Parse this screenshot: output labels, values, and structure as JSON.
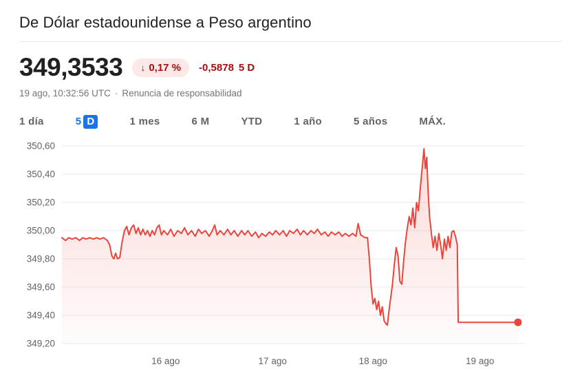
{
  "header": {
    "title": "De Dólar estadounidense a Peso argentino"
  },
  "quote": {
    "price": "349,3533",
    "change_arrow": "↓",
    "change_pct": "0,17 %",
    "change_value": "-0,5878",
    "change_period": "5 D",
    "timestamp": "19 ago, 10:32:56 UTC",
    "separator": "·",
    "disclaimer": "Renuncia de responsabilidad"
  },
  "tabs": [
    {
      "label": "1 día",
      "selected": false
    },
    {
      "label": "5 D",
      "selected": true,
      "highlight_part": "D"
    },
    {
      "label": "1 mes",
      "selected": false
    },
    {
      "label": "6 M",
      "selected": false
    },
    {
      "label": "YTD",
      "selected": false
    },
    {
      "label": "1 año",
      "selected": false
    },
    {
      "label": "5 años",
      "selected": false
    },
    {
      "label": "MÁX.",
      "selected": false
    }
  ],
  "colors": {
    "line": "#e8453c",
    "fill_top": "rgba(232,69,60,0.20)",
    "fill_bottom": "rgba(232,69,60,0.02)",
    "badge_bg": "#fce8e6",
    "badge_text": "#a50e0e",
    "accent_blue": "#1a73e8",
    "grid": "#e8eaed",
    "axis_text": "#5f6368"
  },
  "chart_data": {
    "type": "line",
    "title": "De Dólar estadounidense a Peso argentino",
    "xlabel": "",
    "ylabel": "",
    "ylim": [
      349.2,
      350.6
    ],
    "grid": true,
    "end_marker": true,
    "y_ticks": [
      {
        "value": 350.6,
        "label": "350,60"
      },
      {
        "value": 350.4,
        "label": "350,40"
      },
      {
        "value": 350.2,
        "label": "350,20"
      },
      {
        "value": 350.0,
        "label": "350,00"
      },
      {
        "value": 349.8,
        "label": "349,80"
      },
      {
        "value": 349.6,
        "label": "349,60"
      },
      {
        "value": 349.4,
        "label": "349,40"
      },
      {
        "value": 349.2,
        "label": "349,20"
      }
    ],
    "x_ticks": [
      {
        "t": 0.224,
        "label": "16 ago"
      },
      {
        "t": 0.455,
        "label": "17 ago"
      },
      {
        "t": 0.672,
        "label": "18 ago"
      },
      {
        "t": 0.903,
        "label": "19 ago"
      }
    ],
    "points": [
      [
        0.0,
        349.95
      ],
      [
        0.008,
        349.93
      ],
      [
        0.015,
        349.95
      ],
      [
        0.022,
        349.94
      ],
      [
        0.03,
        349.95
      ],
      [
        0.038,
        349.93
      ],
      [
        0.045,
        349.95
      ],
      [
        0.052,
        349.94
      ],
      [
        0.06,
        349.95
      ],
      [
        0.068,
        349.94
      ],
      [
        0.075,
        349.95
      ],
      [
        0.082,
        349.94
      ],
      [
        0.09,
        349.95
      ],
      [
        0.098,
        349.93
      ],
      [
        0.103,
        349.9
      ],
      [
        0.108,
        349.82
      ],
      [
        0.112,
        349.8
      ],
      [
        0.116,
        349.84
      ],
      [
        0.12,
        349.8
      ],
      [
        0.125,
        349.81
      ],
      [
        0.13,
        349.92
      ],
      [
        0.135,
        350.0
      ],
      [
        0.14,
        350.03
      ],
      [
        0.145,
        349.97
      ],
      [
        0.15,
        350.02
      ],
      [
        0.155,
        350.04
      ],
      [
        0.16,
        349.98
      ],
      [
        0.165,
        350.02
      ],
      [
        0.17,
        349.97
      ],
      [
        0.175,
        350.01
      ],
      [
        0.18,
        349.97
      ],
      [
        0.185,
        350.0
      ],
      [
        0.19,
        349.96
      ],
      [
        0.195,
        350.0
      ],
      [
        0.2,
        349.97
      ],
      [
        0.205,
        350.02
      ],
      [
        0.21,
        350.04
      ],
      [
        0.215,
        349.97
      ],
      [
        0.22,
        350.0
      ],
      [
        0.228,
        349.97
      ],
      [
        0.235,
        350.01
      ],
      [
        0.242,
        349.96
      ],
      [
        0.25,
        350.0
      ],
      [
        0.258,
        349.98
      ],
      [
        0.265,
        350.02
      ],
      [
        0.272,
        349.97
      ],
      [
        0.28,
        350.0
      ],
      [
        0.288,
        349.96
      ],
      [
        0.295,
        350.01
      ],
      [
        0.302,
        349.98
      ],
      [
        0.31,
        350.0
      ],
      [
        0.318,
        349.96
      ],
      [
        0.325,
        350.0
      ],
      [
        0.33,
        350.04
      ],
      [
        0.335,
        349.97
      ],
      [
        0.342,
        350.0
      ],
      [
        0.35,
        349.97
      ],
      [
        0.358,
        350.01
      ],
      [
        0.365,
        349.97
      ],
      [
        0.372,
        350.0
      ],
      [
        0.38,
        349.96
      ],
      [
        0.388,
        350.0
      ],
      [
        0.395,
        349.97
      ],
      [
        0.402,
        350.0
      ],
      [
        0.41,
        349.96
      ],
      [
        0.418,
        349.99
      ],
      [
        0.425,
        349.95
      ],
      [
        0.432,
        349.98
      ],
      [
        0.44,
        349.96
      ],
      [
        0.448,
        349.99
      ],
      [
        0.455,
        349.97
      ],
      [
        0.462,
        350.0
      ],
      [
        0.47,
        349.97
      ],
      [
        0.478,
        350.0
      ],
      [
        0.485,
        349.96
      ],
      [
        0.492,
        350.0
      ],
      [
        0.5,
        349.98
      ],
      [
        0.508,
        350.01
      ],
      [
        0.515,
        349.97
      ],
      [
        0.522,
        350.0
      ],
      [
        0.53,
        349.97
      ],
      [
        0.538,
        350.0
      ],
      [
        0.545,
        349.98
      ],
      [
        0.552,
        350.01
      ],
      [
        0.56,
        349.97
      ],
      [
        0.568,
        349.99
      ],
      [
        0.575,
        349.96
      ],
      [
        0.582,
        349.99
      ],
      [
        0.59,
        349.97
      ],
      [
        0.598,
        349.99
      ],
      [
        0.605,
        349.96
      ],
      [
        0.612,
        349.98
      ],
      [
        0.62,
        349.96
      ],
      [
        0.628,
        349.98
      ],
      [
        0.635,
        349.96
      ],
      [
        0.64,
        350.05
      ],
      [
        0.645,
        349.97
      ],
      [
        0.65,
        349.96
      ],
      [
        0.655,
        349.95
      ],
      [
        0.66,
        349.95
      ],
      [
        0.664,
        349.8
      ],
      [
        0.668,
        349.6
      ],
      [
        0.672,
        349.48
      ],
      [
        0.676,
        349.52
      ],
      [
        0.68,
        349.44
      ],
      [
        0.684,
        349.5
      ],
      [
        0.688,
        349.4
      ],
      [
        0.692,
        349.46
      ],
      [
        0.696,
        349.36
      ],
      [
        0.7,
        349.34
      ],
      [
        0.703,
        349.33
      ],
      [
        0.706,
        349.42
      ],
      [
        0.71,
        349.52
      ],
      [
        0.714,
        349.62
      ],
      [
        0.718,
        349.76
      ],
      [
        0.722,
        349.88
      ],
      [
        0.726,
        349.82
      ],
      [
        0.73,
        349.64
      ],
      [
        0.734,
        349.62
      ],
      [
        0.738,
        349.78
      ],
      [
        0.742,
        349.92
      ],
      [
        0.746,
        350.02
      ],
      [
        0.75,
        350.1
      ],
      [
        0.754,
        350.04
      ],
      [
        0.758,
        350.16
      ],
      [
        0.762,
        350.02
      ],
      [
        0.766,
        350.2
      ],
      [
        0.77,
        350.14
      ],
      [
        0.774,
        350.3
      ],
      [
        0.778,
        350.44
      ],
      [
        0.782,
        350.58
      ],
      [
        0.785,
        350.44
      ],
      [
        0.788,
        350.52
      ],
      [
        0.791,
        350.28
      ],
      [
        0.794,
        350.1
      ],
      [
        0.798,
        349.98
      ],
      [
        0.802,
        349.88
      ],
      [
        0.806,
        349.96
      ],
      [
        0.81,
        349.86
      ],
      [
        0.814,
        349.98
      ],
      [
        0.818,
        349.9
      ],
      [
        0.822,
        349.8
      ],
      [
        0.826,
        349.94
      ],
      [
        0.83,
        349.86
      ],
      [
        0.834,
        349.96
      ],
      [
        0.838,
        349.88
      ],
      [
        0.842,
        349.99
      ],
      [
        0.846,
        350.0
      ],
      [
        0.85,
        349.96
      ],
      [
        0.854,
        349.9
      ],
      [
        0.856,
        349.35
      ],
      [
        0.87,
        349.35
      ],
      [
        0.9,
        349.35
      ],
      [
        0.93,
        349.35
      ],
      [
        0.96,
        349.35
      ],
      [
        0.985,
        349.35
      ]
    ]
  }
}
